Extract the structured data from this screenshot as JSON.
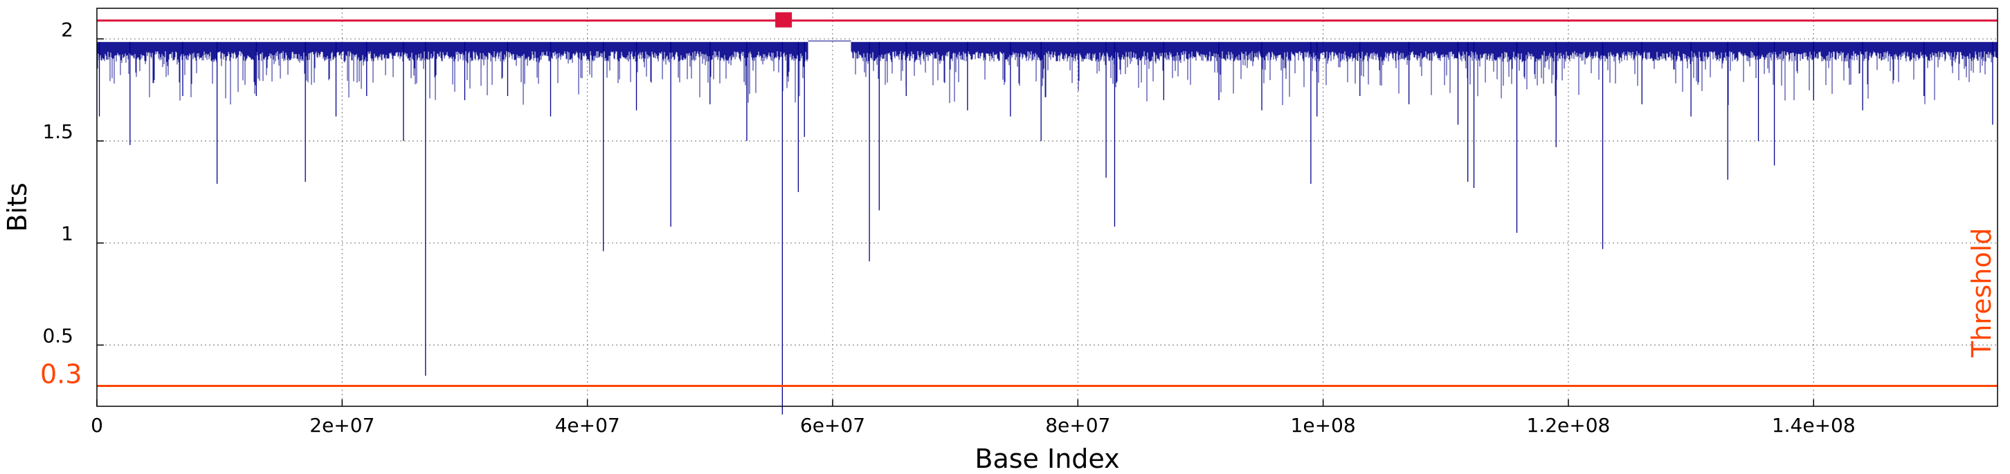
{
  "chart_data": {
    "type": "line",
    "title": "",
    "xlabel": "Base Index",
    "ylabel": "Bits",
    "xlim": [
      0,
      155000000
    ],
    "ylim": [
      0.2,
      2.15
    ],
    "x_ticks": [
      {
        "value": 0,
        "label": "0"
      },
      {
        "value": 20000000,
        "label": "2e+07"
      },
      {
        "value": 40000000,
        "label": "4e+07"
      },
      {
        "value": 60000000,
        "label": "6e+07"
      },
      {
        "value": 80000000,
        "label": "8e+07"
      },
      {
        "value": 100000000,
        "label": "1e+08"
      },
      {
        "value": 120000000,
        "label": "1.2e+08"
      },
      {
        "value": 140000000,
        "label": "1.4e+08"
      }
    ],
    "y_ticks": [
      {
        "value": 0.5,
        "label": "0.5"
      },
      {
        "value": 1,
        "label": "1"
      },
      {
        "value": 1.5,
        "label": "1.5"
      },
      {
        "value": 2,
        "label": "2"
      }
    ],
    "grid": true,
    "series": [
      {
        "color": "#00008b",
        "baseline": 1.97,
        "gap": [
          58000000,
          61500000
        ],
        "dips": [
          {
            "x": 200000,
            "y": 1.62
          },
          {
            "x": 2700000,
            "y": 1.48
          },
          {
            "x": 7000000,
            "y": 1.72
          },
          {
            "x": 9800000,
            "y": 1.29
          },
          {
            "x": 13000000,
            "y": 1.72
          },
          {
            "x": 17000000,
            "y": 1.3
          },
          {
            "x": 19500000,
            "y": 1.62
          },
          {
            "x": 22000000,
            "y": 1.72
          },
          {
            "x": 25000000,
            "y": 1.5
          },
          {
            "x": 26800000,
            "y": 0.35
          },
          {
            "x": 30000000,
            "y": 1.7
          },
          {
            "x": 33500000,
            "y": 1.72
          },
          {
            "x": 37000000,
            "y": 1.62
          },
          {
            "x": 41300000,
            "y": 0.96
          },
          {
            "x": 44000000,
            "y": 1.65
          },
          {
            "x": 46800000,
            "y": 1.08
          },
          {
            "x": 50000000,
            "y": 1.68
          },
          {
            "x": 53000000,
            "y": 1.5
          },
          {
            "x": 55900000,
            "y": 0.16
          },
          {
            "x": 57200000,
            "y": 1.25
          },
          {
            "x": 57700000,
            "y": 1.52
          },
          {
            "x": 63000000,
            "y": 0.91
          },
          {
            "x": 63800000,
            "y": 1.16
          },
          {
            "x": 66000000,
            "y": 1.72
          },
          {
            "x": 71000000,
            "y": 1.65
          },
          {
            "x": 74500000,
            "y": 1.62
          },
          {
            "x": 77000000,
            "y": 1.5
          },
          {
            "x": 82300000,
            "y": 1.32
          },
          {
            "x": 83000000,
            "y": 1.08
          },
          {
            "x": 87000000,
            "y": 1.7
          },
          {
            "x": 91500000,
            "y": 1.7
          },
          {
            "x": 95000000,
            "y": 1.65
          },
          {
            "x": 99000000,
            "y": 1.29
          },
          {
            "x": 99500000,
            "y": 1.62
          },
          {
            "x": 103000000,
            "y": 1.72
          },
          {
            "x": 107000000,
            "y": 1.68
          },
          {
            "x": 111000000,
            "y": 1.58
          },
          {
            "x": 111800000,
            "y": 1.3
          },
          {
            "x": 112300000,
            "y": 1.27
          },
          {
            "x": 115800000,
            "y": 1.05
          },
          {
            "x": 119000000,
            "y": 1.47
          },
          {
            "x": 122800000,
            "y": 0.97
          },
          {
            "x": 126000000,
            "y": 1.68
          },
          {
            "x": 130000000,
            "y": 1.62
          },
          {
            "x": 133000000,
            "y": 1.31
          },
          {
            "x": 135500000,
            "y": 1.5
          },
          {
            "x": 136800000,
            "y": 1.38
          },
          {
            "x": 140000000,
            "y": 1.7
          },
          {
            "x": 144000000,
            "y": 1.65
          },
          {
            "x": 149000000,
            "y": 1.72
          },
          {
            "x": 154600000,
            "y": 1.58
          }
        ]
      }
    ],
    "top_line": {
      "value": 2.09,
      "color": "#dc143c"
    },
    "marker": {
      "x": 56000000,
      "y": 2.09,
      "color": "#dc143c",
      "shape": "square"
    },
    "threshold": {
      "value": 0.3,
      "label": "0.3",
      "text": "Threshold",
      "color": "#ff4500"
    }
  }
}
